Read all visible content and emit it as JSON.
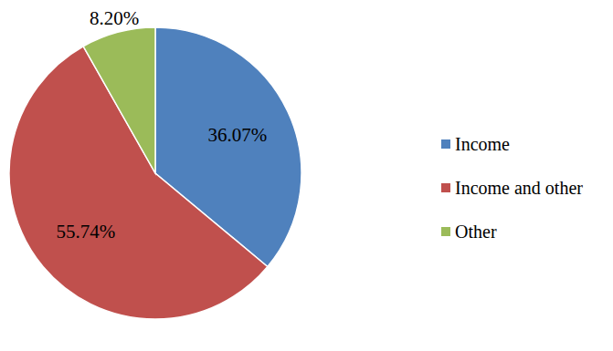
{
  "chart_data": {
    "type": "pie",
    "categories": [
      "Income",
      "Income and other",
      "Other"
    ],
    "values": [
      36.07,
      55.74,
      8.2
    ],
    "value_labels": [
      "36.07%",
      "55.74%",
      "8.20%"
    ],
    "colors": [
      "#4f81bd",
      "#c0504d",
      "#9bbb59"
    ],
    "data_labels": true,
    "legend": "right"
  }
}
